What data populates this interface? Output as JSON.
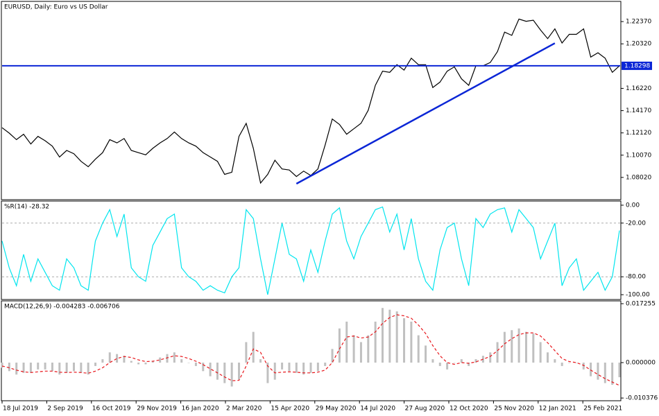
{
  "chart_data": [
    {
      "type": "line",
      "title": "EURUSD, Daily:  Euro vs US Dollar",
      "series": [
        {
          "name": "EURUSD",
          "color": "#000000",
          "values": [
            1.126,
            1.121,
            1.115,
            1.12,
            1.111,
            1.118,
            1.114,
            1.109,
            1.099,
            1.105,
            1.102,
            1.095,
            1.09,
            1.097,
            1.103,
            1.115,
            1.112,
            1.116,
            1.105,
            1.103,
            1.101,
            1.107,
            1.112,
            1.116,
            1.122,
            1.116,
            1.112,
            1.109,
            1.103,
            1.099,
            1.095,
            1.083,
            1.085,
            1.118,
            1.13,
            1.107,
            1.075,
            1.083,
            1.096,
            1.088,
            1.087,
            1.081,
            1.086,
            1.082,
            1.088,
            1.11,
            1.134,
            1.129,
            1.12,
            1.125,
            1.13,
            1.142,
            1.165,
            1.178,
            1.177,
            1.184,
            1.179,
            1.19,
            1.184,
            1.184,
            1.163,
            1.168,
            1.178,
            1.182,
            1.171,
            1.165,
            1.183,
            1.183,
            1.186,
            1.196,
            1.214,
            1.211,
            1.226,
            1.224,
            1.225,
            1.216,
            1.208,
            1.217,
            1.204,
            1.212,
            1.212,
            1.217,
            1.191,
            1.195,
            1.19,
            1.177,
            1.183
          ]
        }
      ],
      "hline": {
        "value": 1.18298,
        "label": "1.18298",
        "color": "#0b26d6"
      },
      "trendline": {
        "x": [
          41,
          77
        ],
        "y": [
          1.0744,
          1.2038
        ],
        "color": "#0b26d6"
      },
      "ylim": [
        1.0597,
        1.2423
      ],
      "yticks": [
        {
          "value": 1.2237,
          "label": "1.22370"
        },
        {
          "value": 1.2032,
          "label": "1.20320"
        },
        {
          "value": 1.1622,
          "label": "1.16220"
        },
        {
          "value": 1.1417,
          "label": "1.14170"
        },
        {
          "value": 1.1212,
          "label": "1.12120"
        },
        {
          "value": 1.1007,
          "label": "1.10070"
        },
        {
          "value": 1.0802,
          "label": "1.08020"
        }
      ]
    },
    {
      "type": "line",
      "title": "%R(14) -28.32",
      "series": [
        {
          "name": "%R(14)",
          "color": "#00e5ee",
          "values": [
            -40,
            -70,
            -90,
            -55,
            -85,
            -60,
            -75,
            -90,
            -95,
            -60,
            -70,
            -90,
            -95,
            -40,
            -20,
            -5,
            -35,
            -10,
            -70,
            -80,
            -85,
            -45,
            -30,
            -15,
            -10,
            -70,
            -80,
            -85,
            -95,
            -90,
            -95,
            -98,
            -80,
            -70,
            -5,
            -15,
            -60,
            -100,
            -60,
            -20,
            -55,
            -60,
            -85,
            -50,
            -75,
            -40,
            -10,
            -3,
            -40,
            -60,
            -35,
            -20,
            -5,
            -2,
            -30,
            -10,
            -50,
            -15,
            -60,
            -85,
            -95,
            -50,
            -25,
            -20,
            -60,
            -90,
            -15,
            -25,
            -10,
            -5,
            -3,
            -30,
            -5,
            -15,
            -25,
            -60,
            -40,
            -20,
            -90,
            -70,
            -60,
            -95,
            -85,
            -75,
            -95,
            -80,
            -28.32
          ]
        }
      ],
      "ylim": [
        -105.4,
        4.6
      ],
      "yticks": [
        {
          "value": 0,
          "label": "0.00"
        },
        {
          "value": -20,
          "label": "-20.00"
        },
        {
          "value": -80,
          "label": "-80.00"
        },
        {
          "value": -100,
          "label": "-100.00"
        }
      ],
      "levels": [
        -20,
        -80
      ]
    },
    {
      "type": "bar",
      "title": "MACD(12,26,9) -0.004283 -0.006706",
      "series": [
        {
          "name": "MACD",
          "mark": "bar",
          "color": "#c0c0c0",
          "values": [
            -0.0015,
            -0.0025,
            -0.0035,
            -0.003,
            -0.003,
            -0.002,
            -0.002,
            -0.0025,
            -0.0035,
            -0.003,
            -0.0025,
            -0.003,
            -0.0035,
            -0.001,
            0.001,
            0.003,
            0.0025,
            0.002,
            0.0005,
            -0.0005,
            -0.0005,
            0.0005,
            0.0015,
            0.0025,
            0.003,
            0.001,
            0,
            -0.001,
            -0.0025,
            -0.004,
            -0.005,
            -0.006,
            -0.007,
            -0.005,
            0.006,
            0.009,
            0.001,
            -0.006,
            -0.005,
            -0.002,
            -0.0025,
            -0.003,
            -0.0035,
            -0.003,
            -0.0025,
            -0.001,
            0.004,
            0.01,
            0.012,
            0.008,
            0.006,
            0.008,
            0.012,
            0.016,
            0.0155,
            0.015,
            0.013,
            0.012,
            0.008,
            0.005,
            0.001,
            -0.001,
            -0.002,
            0,
            0.001,
            -0.001,
            0.001,
            0.002,
            0.003,
            0.006,
            0.009,
            0.0095,
            0.01,
            0.009,
            0.0085,
            0.006,
            0.003,
            0.001,
            -0.001,
            0,
            0,
            -0.002,
            -0.004,
            -0.005,
            -0.006,
            -0.0065,
            -0.004283
          ]
        },
        {
          "name": "Signal",
          "mark": "line",
          "dash": true,
          "color": "#e8161b",
          "values": [
            -0.001,
            -0.0015,
            -0.0022,
            -0.0027,
            -0.0029,
            -0.0027,
            -0.0025,
            -0.0025,
            -0.0028,
            -0.0029,
            -0.0028,
            -0.0029,
            -0.0031,
            -0.0025,
            -0.0015,
            0,
            0.0012,
            0.0018,
            0.0015,
            0.0008,
            0.0003,
            0.0004,
            0.0008,
            0.0014,
            0.002,
            0.0018,
            0.0012,
            0.0004,
            -0.0006,
            -0.0018,
            -0.003,
            -0.0042,
            -0.0053,
            -0.0052,
            -0.001,
            0.004,
            0.003,
            -0.001,
            -0.003,
            -0.0028,
            -0.0027,
            -0.0028,
            -0.003,
            -0.003,
            -0.0028,
            -0.0022,
            0,
            0.004,
            0.0075,
            0.0078,
            0.0072,
            0.0075,
            0.009,
            0.0115,
            0.0132,
            0.014,
            0.0137,
            0.013,
            0.011,
            0.0085,
            0.005,
            0.002,
            0,
            -0.0005,
            0,
            -0.0002,
            0.0002,
            0.001,
            0.0018,
            0.0035,
            0.0055,
            0.007,
            0.0082,
            0.0087,
            0.0087,
            0.0078,
            0.0058,
            0.0035,
            0.0012,
            0.0003,
            0,
            -0.0008,
            -0.0022,
            -0.0035,
            -0.0047,
            -0.0057,
            -0.006706
          ]
        }
      ],
      "ylim": [
        -0.01117,
        0.01807
      ],
      "yticks": [
        0.017255,
        {
          "value": 0,
          "label": "0.000000"
        },
        -0.010376
      ],
      "x_labels": [
        "18 Jul 2019",
        "2 Sep 2019",
        "16 Oct 2019",
        "29 Nov 2019",
        "16 Jan 2020",
        "2 Mar 2020",
        "15 Apr 2020",
        "29 May 2020",
        "14 Jul 2020",
        "27 Aug 2020",
        "12 Oct 2020",
        "25 Nov 2020",
        "12 Jan 2021",
        "25 Feb 2021"
      ]
    }
  ]
}
